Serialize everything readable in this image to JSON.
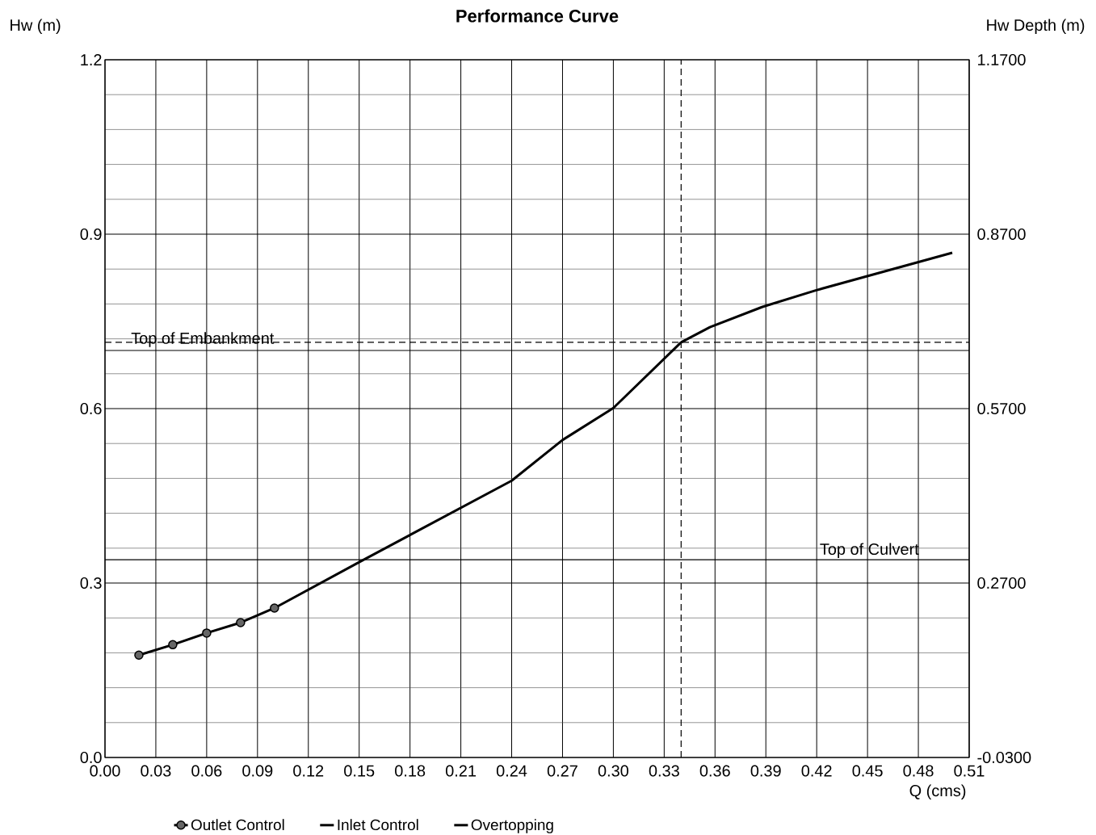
{
  "chart_data": {
    "type": "line",
    "title": "Performance Curve",
    "xlabel": "Q (cms)",
    "ylabel": "Hw (m)",
    "y2label": "Hw Depth (m)",
    "series": [
      {
        "name": "Outlet Control",
        "color": "#000000",
        "marker": "circle",
        "x": [
          0.02,
          0.04,
          0.06,
          0.08,
          0.1
        ],
        "values": [
          0.176,
          0.194,
          0.214,
          0.232,
          0.257
        ]
      },
      {
        "name": "Inlet Control",
        "color": "#000000",
        "x": [
          0.1,
          0.15,
          0.24,
          0.27,
          0.3,
          0.34
        ],
        "values": [
          0.257,
          0.336,
          0.476,
          0.546,
          0.601,
          0.714
        ]
      },
      {
        "name": "Overtopping",
        "color": "#000000",
        "x": [
          0.34,
          0.357,
          0.388,
          0.419,
          0.5
        ],
        "values": [
          0.714,
          0.74,
          0.775,
          0.803,
          0.868
        ]
      }
    ],
    "xlim": [
      0,
      0.51
    ],
    "xticks": [
      {
        "value": 0,
        "label": "0.00"
      },
      0.03,
      0.06,
      0.09,
      0.12,
      0.15,
      0.18,
      0.21,
      0.24,
      0.27,
      {
        "value": 0.3,
        "label": "0.30"
      },
      0.33,
      0.36,
      0.39,
      0.42,
      0.45,
      0.48,
      0.51
    ],
    "ylim": [
      0,
      1.2
    ],
    "yticks": [
      {
        "value": 0,
        "label": "0.0"
      },
      0.3,
      0.6,
      0.9,
      1.2
    ],
    "y2lim": [
      -0.03,
      1.17
    ],
    "y2ticks": [
      {
        "value": -0.03,
        "label": "-0.0300"
      },
      {
        "value": 0.27,
        "label": "0.2700"
      },
      {
        "value": 0.57,
        "label": "0.5700"
      },
      {
        "value": 0.87,
        "label": "0.8700"
      },
      {
        "value": 1.17,
        "label": "1.1700"
      }
    ],
    "ref_lines": [
      {
        "axis": "y",
        "value": 0.7,
        "label": "Top of Embankment",
        "color": "#000000",
        "line_style": "solid"
      },
      {
        "axis": "y",
        "value": 0.34,
        "label": "Top of Culvert",
        "color": "#000000",
        "line_style": "solid"
      },
      {
        "axis": "y",
        "value": 0.714,
        "color": "#000000",
        "line_style": "dashed"
      },
      {
        "axis": "x",
        "value": 0.34,
        "color": "#000000",
        "line_style": "dashed"
      }
    ],
    "grid": true,
    "legend": "bottom"
  }
}
